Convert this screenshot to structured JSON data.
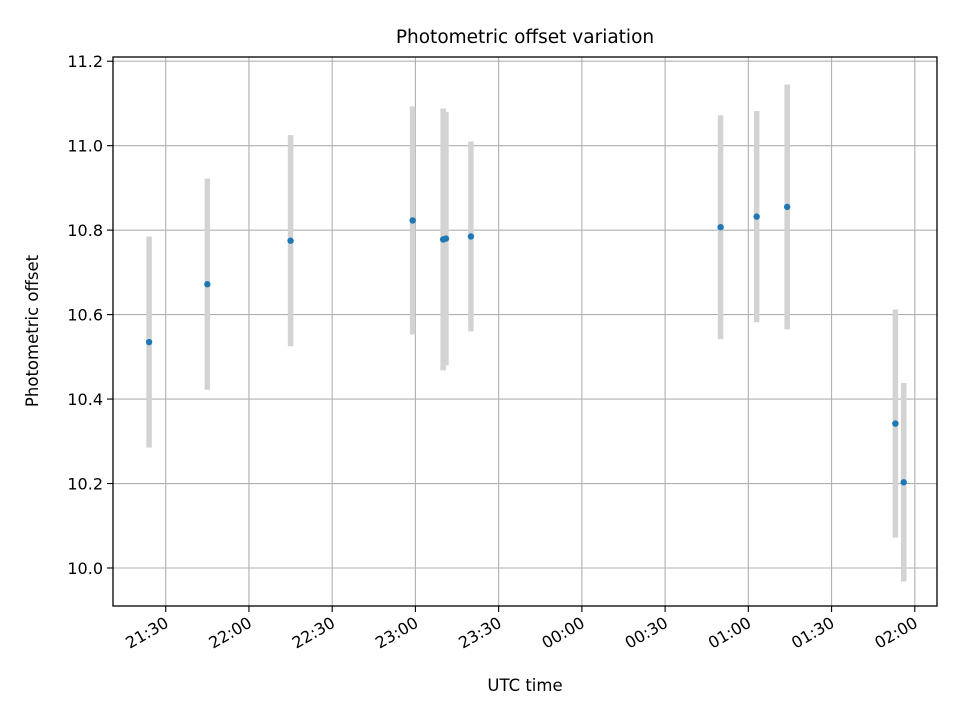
{
  "chart_data": {
    "type": "scatter",
    "title": "Photometric offset variation",
    "xlabel": "UTC time",
    "ylabel": "Photometric offset",
    "x_start": "21:11",
    "xlim": [
      "21:11",
      "02:08"
    ],
    "ylim": [
      9.91,
      11.21
    ],
    "x_ticks": [
      "21:30",
      "22:00",
      "22:30",
      "23:00",
      "23:30",
      "00:00",
      "00:30",
      "01:00",
      "01:30",
      "02:00"
    ],
    "y_ticks": [
      10.0,
      10.2,
      10.4,
      10.6,
      10.8,
      11.0,
      11.2
    ],
    "grid": true,
    "marker_color": "#1f77b4",
    "errorbar_color": "#d3d3d3",
    "points": [
      {
        "time": "21:24",
        "y": 10.535,
        "yerr": 0.25
      },
      {
        "time": "21:45",
        "y": 10.672,
        "yerr": 0.25
      },
      {
        "time": "22:15",
        "y": 10.775,
        "yerr": 0.25
      },
      {
        "time": "22:59",
        "y": 10.823,
        "yerr": 0.27
      },
      {
        "time": "23:10",
        "y": 10.778,
        "yerr": 0.31
      },
      {
        "time": "23:11",
        "y": 10.78,
        "yerr": 0.3
      },
      {
        "time": "23:20",
        "y": 10.785,
        "yerr": 0.225
      },
      {
        "time": "00:50",
        "y": 10.807,
        "yerr": 0.265
      },
      {
        "time": "01:03",
        "y": 10.832,
        "yerr": 0.25
      },
      {
        "time": "01:14",
        "y": 10.855,
        "yerr": 0.29
      },
      {
        "time": "01:53",
        "y": 10.342,
        "yerr": 0.27
      },
      {
        "time": "01:56",
        "y": 10.203,
        "yerr": 0.235
      }
    ]
  }
}
